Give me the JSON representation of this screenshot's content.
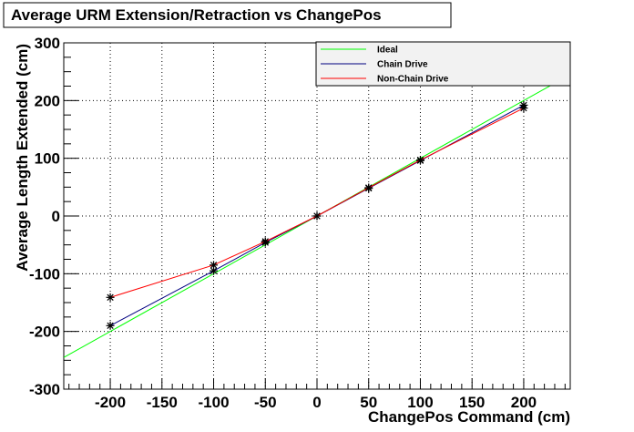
{
  "chart_data": {
    "type": "line",
    "title": "Average URM Extension/Retraction vs ChangePos",
    "xlabel": "ChangePos Command (cm)",
    "ylabel": "Average Length Extended (cm)",
    "xlim": [
      -245,
      245
    ],
    "ylim": [
      -300,
      300
    ],
    "xticks": [
      -200,
      -150,
      -100,
      -50,
      0,
      50,
      100,
      150,
      200
    ],
    "yticks": [
      -300,
      -200,
      -100,
      0,
      100,
      200,
      300
    ],
    "grid": true,
    "legend_position": "top-right",
    "series": [
      {
        "name": "Ideal",
        "color": "#00ff00",
        "markers": false,
        "x": [
          -245,
          245
        ],
        "y": [
          -245,
          245
        ]
      },
      {
        "name": "Chain Drive",
        "color": "#000080",
        "markers": true,
        "x": [
          -200,
          -100,
          -50,
          0,
          50,
          100,
          200
        ],
        "y": [
          -190,
          -95,
          -46,
          0,
          48,
          96,
          192
        ]
      },
      {
        "name": "Non-Chain Drive",
        "color": "#ff0000",
        "markers": true,
        "x": [
          -200,
          -100,
          -50,
          0,
          50,
          100,
          200
        ],
        "y": [
          -141,
          -85,
          -44,
          0,
          49,
          97,
          187
        ]
      }
    ]
  }
}
